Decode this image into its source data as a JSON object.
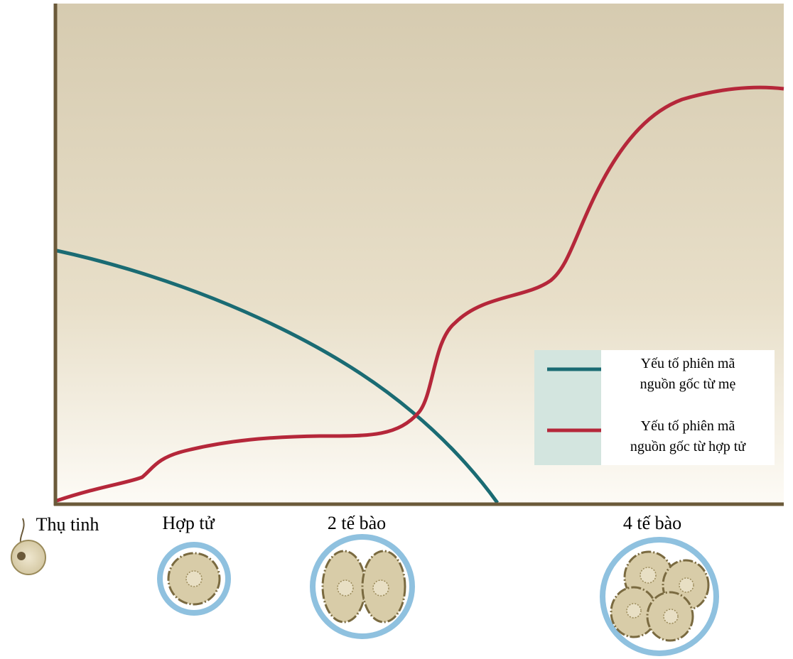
{
  "stages": [
    {
      "label": "Thụ tinh"
    },
    {
      "label": "Hợp tử"
    },
    {
      "label": "2 tế bào"
    },
    {
      "label": "4 tế bào"
    }
  ],
  "legend": [
    {
      "lines": [
        "Yếu tố phiên mã",
        "nguồn gốc từ mẹ"
      ]
    },
    {
      "lines": [
        "Yếu tố phiên mã",
        "nguồn gốc từ hợp tử"
      ]
    }
  ]
}
